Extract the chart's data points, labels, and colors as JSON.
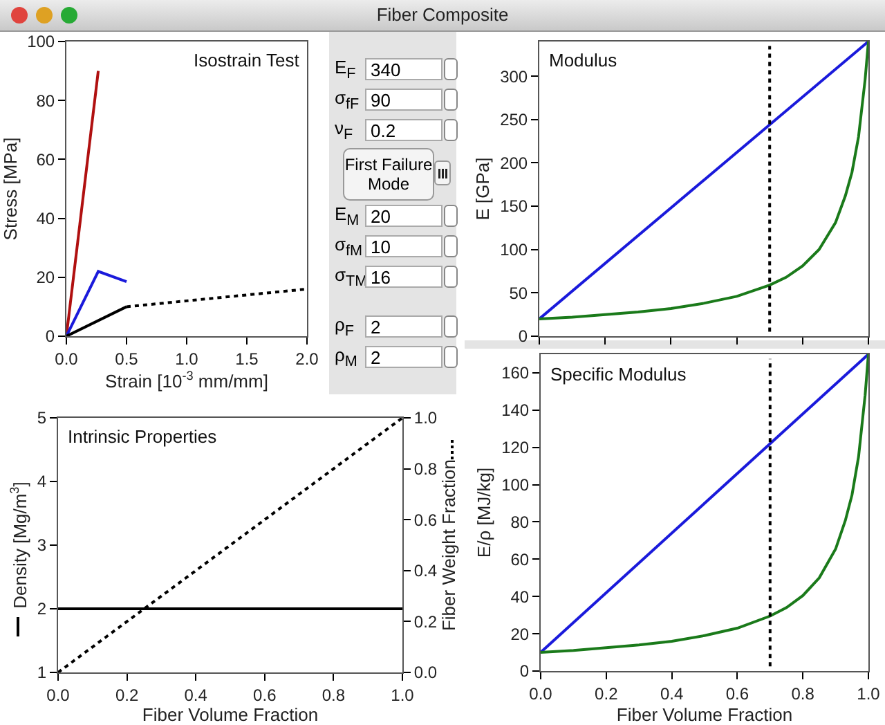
{
  "chart_data": [
    {
      "type": "line",
      "title": "Isostrain Test",
      "xlabel": "Strain [10$^{-3}$ mm/mm]",
      "ylabel": "Stress [MPa]",
      "xlim": [
        0,
        2.0
      ],
      "ylim": [
        0,
        100
      ],
      "xticks": [
        {
          "value": 0,
          "label": "0.0"
        },
        {
          "value": 0.5,
          "label": "0.5"
        },
        {
          "value": 1,
          "label": "1.0"
        },
        {
          "value": 1.5,
          "label": "1.5"
        },
        {
          "value": 2,
          "label": "2.0"
        }
      ],
      "yticks": [
        0,
        20,
        40,
        60,
        80,
        100
      ],
      "grid": false,
      "series": [
        {
          "color": "#b01010",
          "x": [
            0,
            0.265
          ],
          "values": [
            0,
            90
          ]
        },
        {
          "color": "#1a1adb",
          "x": [
            0,
            0.265,
            0.5
          ],
          "values": [
            0,
            22,
            18.5
          ]
        },
        {
          "color": "#000000",
          "x": [
            0,
            0.5
          ],
          "values": [
            0,
            10
          ]
        },
        {
          "color": "#000000",
          "line_style": "dotted",
          "x": [
            0.5,
            2.0
          ],
          "values": [
            10,
            16
          ]
        }
      ]
    },
    {
      "type": "other",
      "title": "Fiber Composite",
      "annotations": [
        "E$_{F}$",
        "340",
        "σ$_{fF}$",
        "90",
        "ν$_{F}$",
        "0.2",
        "First Failure Mode",
        "E$_{M}$",
        "20",
        "σ$_{fM}$",
        "10",
        "σ$_{TM}$",
        "16",
        "ρ$_{F}$",
        "2",
        "ρ$_{M}$",
        "2"
      ]
    },
    {
      "type": "line",
      "title": "Modulus",
      "ylabel": "E [GPa]",
      "xlim": [
        0,
        1
      ],
      "ylim": [
        0,
        340
      ],
      "xticks": [
        0,
        0.2,
        0.4,
        0.6,
        0.8,
        1
      ],
      "yticks": [
        0,
        50,
        100,
        150,
        200,
        250,
        300
      ],
      "tick_labels": "y",
      "grid": false,
      "ref_lines": [
        {
          "axis": "x",
          "value": 0.7,
          "color": "#000000",
          "line_style": "dotted"
        }
      ],
      "series": [
        {
          "color": "#1a1adb",
          "x": [
            0,
            1
          ],
          "values": [
            20,
            340
          ]
        },
        {
          "color": "#1a7a1a",
          "x": [
            0,
            0.1,
            0.2,
            0.3,
            0.4,
            0.5,
            0.6,
            0.7,
            0.75,
            0.8,
            0.85,
            0.9,
            0.93,
            0.95,
            0.97,
            0.99,
            1
          ],
          "values": [
            20,
            22,
            25,
            28,
            32,
            38,
            46,
            59,
            68,
            81,
            100,
            131,
            162,
            189,
            230,
            296,
            340
          ]
        }
      ]
    },
    {
      "type": "line",
      "title": "Intrinsic Properties",
      "xlabel": "Fiber Volume Fraction",
      "ylabel": "Density [Mg/m$^{3}$]",
      "y2label": "Fiber Weight Fraction",
      "xlim": [
        0,
        1
      ],
      "ylim": [
        1,
        5
      ],
      "y2lim": [
        0,
        1
      ],
      "xticks": [
        {
          "value": 0,
          "label": "0.0"
        },
        0.2,
        0.4,
        0.6,
        0.8,
        {
          "value": 1,
          "label": "1.0"
        }
      ],
      "yticks": [
        1,
        2,
        3,
        4,
        5
      ],
      "y2ticks": [
        {
          "value": 0,
          "label": "0.0"
        },
        0.2,
        0.4,
        0.6,
        0.8,
        {
          "value": 1,
          "label": "1.0"
        }
      ],
      "grid": false,
      "series": [
        {
          "color": "#000000",
          "x": [
            0,
            1
          ],
          "values": [
            2,
            2
          ]
        },
        {
          "color": "#000000",
          "axis": "y2",
          "line_style": "dotted",
          "x": [
            0,
            1
          ],
          "values": [
            0,
            1
          ]
        }
      ]
    },
    {
      "type": "line",
      "title": "Specific Modulus",
      "xlabel": "Fiber Volume Fraction",
      "ylabel": "E/ρ [MJ/kg]",
      "xlim": [
        0,
        1
      ],
      "ylim": [
        0,
        170
      ],
      "xticks": [
        {
          "value": 0,
          "label": "0.0"
        },
        0.2,
        0.4,
        0.6,
        0.8,
        {
          "value": 1,
          "label": "1.0"
        }
      ],
      "yticks": [
        0,
        20,
        40,
        60,
        80,
        100,
        120,
        140,
        160
      ],
      "grid": false,
      "ref_lines": [
        {
          "axis": "x",
          "value": 0.7,
          "color": "#000000",
          "line_style": "dotted"
        }
      ],
      "series": [
        {
          "color": "#1a1adb",
          "x": [
            0,
            1
          ],
          "values": [
            10,
            170
          ]
        },
        {
          "color": "#1a7a1a",
          "x": [
            0,
            0.1,
            0.2,
            0.3,
            0.4,
            0.5,
            0.6,
            0.7,
            0.75,
            0.8,
            0.85,
            0.9,
            0.93,
            0.95,
            0.97,
            0.99,
            1
          ],
          "values": [
            10,
            11,
            12.5,
            14,
            16,
            19,
            23,
            29.5,
            34,
            40.5,
            50,
            65.5,
            81,
            94.5,
            115,
            148,
            170
          ]
        }
      ]
    }
  ]
}
